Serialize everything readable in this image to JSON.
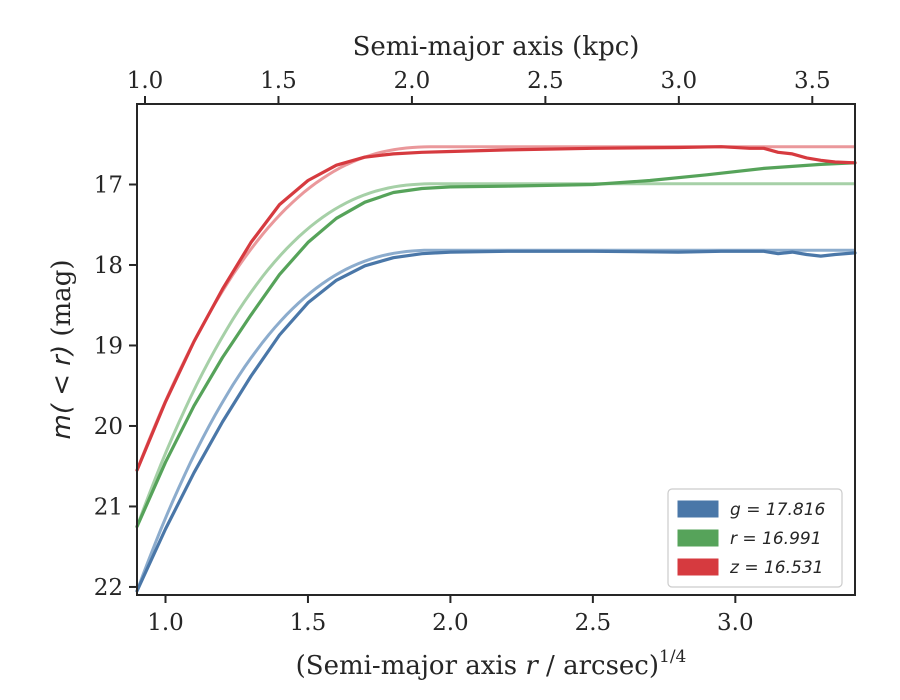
{
  "chart_data": {
    "type": "line",
    "xlabel_bottom": "(Semi-major axis r / arcsec)1/4",
    "xlabel_bottom_parts": {
      "pre": "(Semi-major axis ",
      "var": "r",
      "post": " / arcsec)",
      "sup": "1/4"
    },
    "xlabel_top": "Semi-major axis (kpc)",
    "ylabel": "m(<r) (mag)",
    "ylabel_parts": {
      "math": "m( < r)",
      "unit": " (mag)"
    },
    "xlim_bottom": [
      0.9,
      3.42
    ],
    "xlim_top": [
      0.97,
      3.66
    ],
    "ylim": [
      22.1,
      16.0
    ],
    "y_inverted": true,
    "x_ticks_bottom": [
      "1.0",
      "1.5",
      "2.0",
      "2.5",
      "3.0"
    ],
    "x_ticks_top": [
      "1.0",
      "1.5",
      "2.0",
      "2.5",
      "3.0",
      "3.5"
    ],
    "y_ticks": [
      "17",
      "18",
      "19",
      "20",
      "21",
      "22"
    ],
    "legend_position": "lower-right",
    "series": [
      {
        "name": "g = 17.816",
        "color": "#4a77a8",
        "fit_color": "#7fa3c8",
        "asymptote": 17.816,
        "x": [
          0.9,
          1.0,
          1.1,
          1.2,
          1.3,
          1.4,
          1.5,
          1.6,
          1.7,
          1.8,
          1.9,
          2.0,
          2.2,
          2.5,
          2.8,
          2.95,
          3.05,
          3.1,
          3.15,
          3.2,
          3.25,
          3.3,
          3.35,
          3.42
        ],
        "y": [
          22.05,
          21.28,
          20.58,
          19.95,
          19.38,
          18.87,
          18.47,
          18.19,
          18.01,
          17.91,
          17.86,
          17.84,
          17.83,
          17.83,
          17.84,
          17.83,
          17.83,
          17.83,
          17.86,
          17.84,
          17.87,
          17.89,
          17.87,
          17.85
        ]
      },
      {
        "name": "r = 16.991",
        "color": "#56a35a",
        "fit_color": "#9ccb9d",
        "asymptote": 16.991,
        "x": [
          0.9,
          1.0,
          1.1,
          1.2,
          1.3,
          1.4,
          1.5,
          1.6,
          1.7,
          1.8,
          1.9,
          2.0,
          2.2,
          2.5,
          2.7,
          2.9,
          3.1,
          3.3,
          3.42
        ],
        "y": [
          21.25,
          20.45,
          19.75,
          19.15,
          18.62,
          18.12,
          17.72,
          17.42,
          17.22,
          17.1,
          17.05,
          17.03,
          17.02,
          17.0,
          16.95,
          16.88,
          16.8,
          16.75,
          16.73
        ]
      },
      {
        "name": "z = 16.531",
        "color": "#d63a3f",
        "fit_color": "#e88d90",
        "asymptote": 16.531,
        "x": [
          0.9,
          1.0,
          1.1,
          1.2,
          1.3,
          1.4,
          1.5,
          1.6,
          1.7,
          1.8,
          1.9,
          2.0,
          2.2,
          2.5,
          2.8,
          2.95,
          3.05,
          3.1,
          3.15,
          3.2,
          3.25,
          3.3,
          3.35,
          3.42
        ],
        "y": [
          20.55,
          19.7,
          18.95,
          18.3,
          17.72,
          17.25,
          16.95,
          16.76,
          16.66,
          16.62,
          16.6,
          16.59,
          16.57,
          16.55,
          16.54,
          16.53,
          16.55,
          16.55,
          16.6,
          16.62,
          16.67,
          16.7,
          16.72,
          16.73
        ]
      }
    ]
  }
}
